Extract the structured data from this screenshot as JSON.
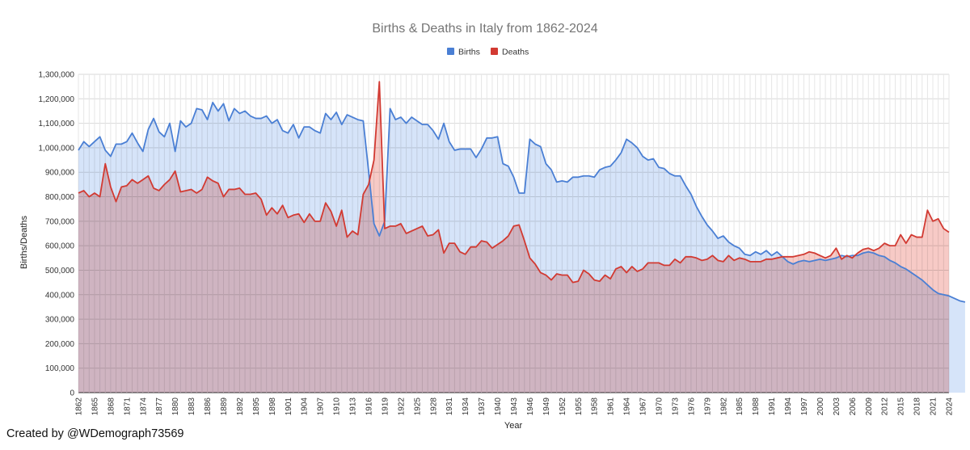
{
  "chart_data": {
    "type": "area",
    "title": "Births & Deaths in Italy from 1862-2024",
    "xlabel": "Year",
    "ylabel": "Births/Deaths",
    "ylim": [
      0,
      1300000
    ],
    "yticks": [
      "0",
      "100,000",
      "200,000",
      "300,000",
      "400,000",
      "500,000",
      "600,000",
      "700,000",
      "800,000",
      "900,000",
      "1,000,000",
      "1,100,000",
      "1,200,000",
      "1,300,000"
    ],
    "x_start": 1862,
    "x_end": 2024,
    "xtick_labels": [
      "1862",
      "1865",
      "1868",
      "1871",
      "1874",
      "1877",
      "1880",
      "1883",
      "1886",
      "1889",
      "1892",
      "1895",
      "1898",
      "1901",
      "1904",
      "1907",
      "1910",
      "1913",
      "1916",
      "1919",
      "1922",
      "1925",
      "1928",
      "1931",
      "1934",
      "1937",
      "1940",
      "1943",
      "1946",
      "1949",
      "1952",
      "1955",
      "1958",
      "1961",
      "1964",
      "1967",
      "1970",
      "1973",
      "1976",
      "1979",
      "1982",
      "1985",
      "1988",
      "1991",
      "1994",
      "1997",
      "2000",
      "2003",
      "2006",
      "2009",
      "2012",
      "2015",
      "2018",
      "2021",
      "2024"
    ],
    "grid": true,
    "legend_position": "top",
    "series": [
      {
        "name": "Births",
        "color": "#4a7fd4",
        "fill": "#c5d8f7",
        "values": [
          990000,
          1025000,
          1005000,
          1025000,
          1045000,
          990000,
          965000,
          1015000,
          1015000,
          1025000,
          1060000,
          1020000,
          985000,
          1075000,
          1120000,
          1065000,
          1045000,
          1100000,
          985000,
          1110000,
          1085000,
          1100000,
          1160000,
          1155000,
          1115000,
          1185000,
          1150000,
          1180000,
          1110000,
          1160000,
          1140000,
          1150000,
          1130000,
          1120000,
          1120000,
          1130000,
          1100000,
          1115000,
          1070000,
          1060000,
          1095000,
          1040000,
          1085000,
          1085000,
          1070000,
          1060000,
          1140000,
          1115000,
          1145000,
          1095000,
          1135000,
          1125000,
          1115000,
          1110000,
          905000,
          690000,
          640000,
          700000,
          1160000,
          1115000,
          1125000,
          1100000,
          1125000,
          1110000,
          1095000,
          1095000,
          1070000,
          1035000,
          1100000,
          1025000,
          990000,
          995000,
          995000,
          995000,
          960000,
          995000,
          1040000,
          1040000,
          1045000,
          935000,
          925000,
          880000,
          815000,
          815000,
          1035000,
          1015000,
          1005000,
          935000,
          910000,
          860000,
          865000,
          860000,
          880000,
          880000,
          885000,
          885000,
          880000,
          910000,
          920000,
          925000,
          950000,
          980000,
          1035000,
          1020000,
          1000000,
          965000,
          950000,
          955000,
          920000,
          915000,
          895000,
          885000,
          885000,
          845000,
          810000,
          760000,
          720000,
          685000,
          660000,
          630000,
          640000,
          615000,
          600000,
          590000,
          565000,
          560000,
          575000,
          565000,
          580000,
          560000,
          575000,
          555000,
          535000,
          525000,
          535000,
          540000,
          535000,
          540000,
          545000,
          540000,
          545000,
          550000,
          560000,
          555000,
          560000,
          560000,
          570000,
          575000,
          570000,
          560000,
          555000,
          540000,
          530000,
          515000,
          505000,
          490000,
          475000,
          460000,
          440000,
          420000,
          405000,
          400000,
          395000,
          385000,
          375000,
          370000
        ]
      },
      {
        "name": "Deaths",
        "color": "#d23a32",
        "fill": "#f4b3ae",
        "values": [
          815000,
          825000,
          800000,
          815000,
          800000,
          935000,
          840000,
          780000,
          840000,
          845000,
          870000,
          855000,
          870000,
          885000,
          835000,
          825000,
          850000,
          870000,
          905000,
          820000,
          825000,
          830000,
          815000,
          830000,
          880000,
          865000,
          855000,
          800000,
          830000,
          830000,
          835000,
          810000,
          810000,
          815000,
          790000,
          725000,
          755000,
          730000,
          765000,
          715000,
          725000,
          730000,
          695000,
          730000,
          700000,
          700000,
          775000,
          740000,
          680000,
          745000,
          635000,
          660000,
          645000,
          810000,
          850000,
          950000,
          1270000,
          670000,
          680000,
          680000,
          690000,
          650000,
          660000,
          670000,
          680000,
          640000,
          645000,
          665000,
          570000,
          610000,
          610000,
          575000,
          565000,
          595000,
          595000,
          620000,
          615000,
          590000,
          605000,
          620000,
          640000,
          680000,
          685000,
          620000,
          550000,
          525000,
          490000,
          480000,
          460000,
          485000,
          480000,
          480000,
          450000,
          455000,
          500000,
          485000,
          460000,
          455000,
          480000,
          465000,
          505000,
          515000,
          490000,
          515000,
          495000,
          505000,
          530000,
          530000,
          530000,
          520000,
          520000,
          545000,
          530000,
          555000,
          555000,
          550000,
          540000,
          545000,
          560000,
          540000,
          535000,
          560000,
          540000,
          550000,
          545000,
          535000,
          535000,
          535000,
          545000,
          545000,
          550000,
          555000,
          555000,
          555000,
          560000,
          565000,
          575000,
          570000,
          560000,
          550000,
          560000,
          590000,
          545000,
          560000,
          550000,
          570000,
          585000,
          590000,
          580000,
          590000,
          610000,
          600000,
          600000,
          645000,
          610000,
          645000,
          635000,
          635000,
          745000,
          700000,
          710000,
          670000,
          655000
        ]
      }
    ]
  },
  "credit": "Created by @WDemograph73569"
}
